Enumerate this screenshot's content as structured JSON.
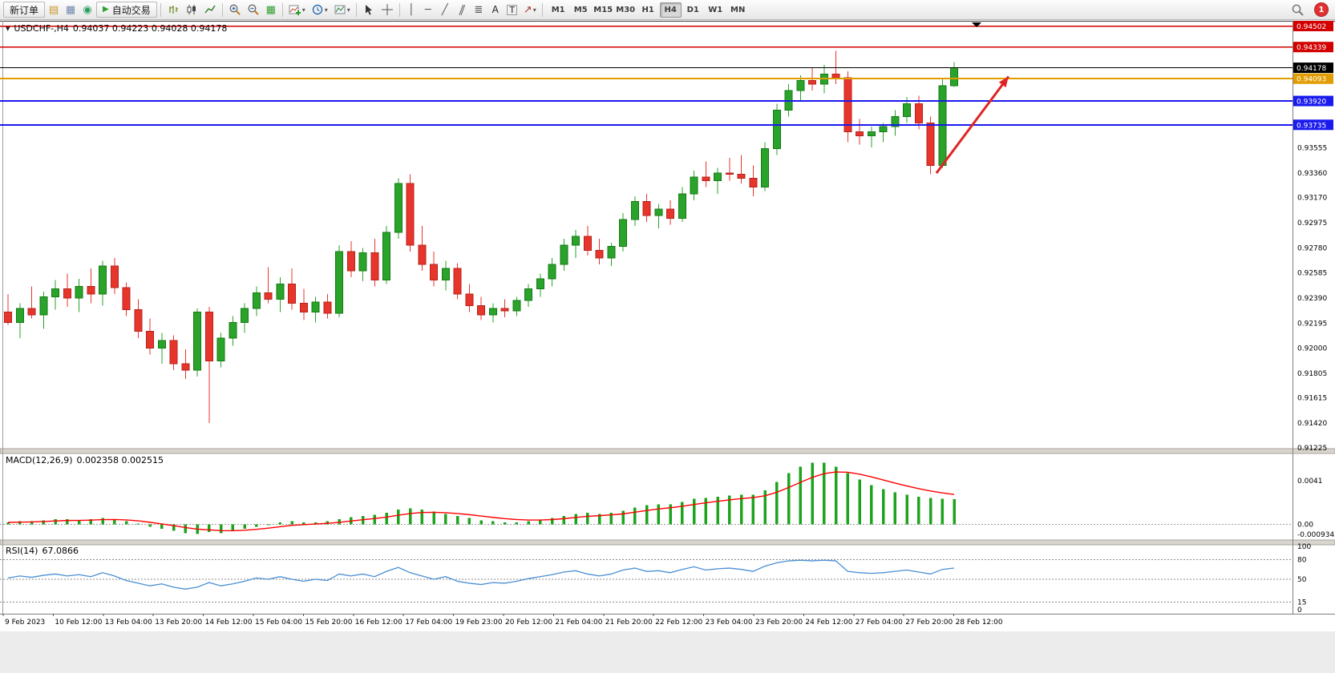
{
  "toolbar": {
    "new_order_label": "新订单",
    "autotrading_label": "自动交易",
    "timeframes": [
      "M1",
      "M5",
      "M15",
      "M30",
      "H1",
      "H4",
      "D1",
      "W1",
      "MN"
    ],
    "active_timeframe": "H4",
    "notification_count": "1",
    "glyphs": {
      "new_chart": "▤",
      "profiles": "▦",
      "terminal": "◉",
      "play": "▶",
      "tile": "▦",
      "vline": "│",
      "hline": "─",
      "trend": "╱",
      "channel": "∥",
      "fibo": "≣",
      "text": "A",
      "label": "T",
      "arrows": "↗",
      "dropdown": "▾"
    }
  },
  "chart": {
    "symbol_period": "USDCHF-,H4",
    "ohlc_text": "0.94037 0.94223 0.94028 0.94178",
    "dropdown_glyph": "▼",
    "macd_label": "MACD(12,26,9)",
    "macd_values": "0.002358 0.002515",
    "rsi_label": "RSI(14)",
    "rsi_value": "67.0866"
  },
  "chart_data": [
    {
      "type": "candlestick",
      "title": "USDCHF-,H4",
      "symbol": "USDCHF-",
      "timeframe": "H4",
      "current_ohlc": {
        "open": 0.94037,
        "high": 0.94223,
        "low": 0.94028,
        "close": 0.94178
      },
      "ylim": [
        0.9122,
        0.9453
      ],
      "up_color": "#2aa32a",
      "up_stroke": "#157a15",
      "down_color": "#e8352c",
      "down_stroke": "#b3231c",
      "y_ticks": [
        0.93555,
        0.9336,
        0.9317,
        0.92975,
        0.9278,
        0.92585,
        0.9239,
        0.92195,
        0.92,
        0.91805,
        0.91615,
        0.9142,
        0.91225
      ],
      "hlines": [
        {
          "price": 0.94502,
          "color": "#d20000",
          "width": 1.5,
          "label": "0.94502"
        },
        {
          "price": 0.94339,
          "color": "#d20000",
          "width": 1.5,
          "label": "0.94339"
        },
        {
          "price": 0.94178,
          "color": "#000000",
          "width": 1,
          "label": "0.94178"
        },
        {
          "price": 0.94093,
          "color": "#e09c00",
          "width": 2,
          "label": "0.94093"
        },
        {
          "price": 0.9392,
          "color": "#1a1aee",
          "width": 2,
          "label": "0.93920"
        },
        {
          "price": 0.93735,
          "color": "#1a1aee",
          "width": 2,
          "label": "0.93735"
        }
      ],
      "annotation_arrow": {
        "from_index": 78.5,
        "from_price": 0.9336,
        "to_index": 84.6,
        "to_price": 0.9411,
        "color": "#e02424"
      },
      "x_labels": [
        "9 Feb 2023",
        "10 Feb 12:00",
        "13 Feb 04:00",
        "13 Feb 20:00",
        "14 Feb 12:00",
        "15 Feb 04:00",
        "15 Feb 20:00",
        "16 Feb 12:00",
        "17 Feb 04:00",
        "19 Feb 23:00",
        "20 Feb 12:00",
        "21 Feb 04:00",
        "21 Feb 20:00",
        "22 Feb 12:00",
        "23 Feb 04:00",
        "23 Feb 20:00",
        "24 Feb 12:00",
        "27 Feb 04:00",
        "27 Feb 20:00",
        "28 Feb 12:00"
      ],
      "candles": [
        [
          0.9228,
          0.9242,
          0.9218,
          0.922
        ],
        [
          0.922,
          0.9235,
          0.9208,
          0.9231
        ],
        [
          0.9231,
          0.9248,
          0.9223,
          0.9226
        ],
        [
          0.9226,
          0.9244,
          0.9215,
          0.924
        ],
        [
          0.924,
          0.9253,
          0.923,
          0.9246
        ],
        [
          0.9246,
          0.9258,
          0.9232,
          0.9239
        ],
        [
          0.9239,
          0.9254,
          0.9228,
          0.9248
        ],
        [
          0.9248,
          0.9262,
          0.9235,
          0.9242
        ],
        [
          0.9242,
          0.9268,
          0.9233,
          0.9264
        ],
        [
          0.9264,
          0.927,
          0.9242,
          0.9247
        ],
        [
          0.9247,
          0.9251,
          0.9225,
          0.923
        ],
        [
          0.923,
          0.9238,
          0.9208,
          0.9213
        ],
        [
          0.9213,
          0.9223,
          0.9195,
          0.92
        ],
        [
          0.92,
          0.9212,
          0.9188,
          0.9206
        ],
        [
          0.9206,
          0.921,
          0.9183,
          0.9188
        ],
        [
          0.9188,
          0.9199,
          0.9176,
          0.9183
        ],
        [
          0.9183,
          0.9231,
          0.9178,
          0.9228
        ],
        [
          0.9228,
          0.9232,
          0.9142,
          0.919
        ],
        [
          0.919,
          0.9212,
          0.9185,
          0.9208
        ],
        [
          0.9208,
          0.9225,
          0.9202,
          0.922
        ],
        [
          0.922,
          0.9235,
          0.9212,
          0.9231
        ],
        [
          0.9231,
          0.9248,
          0.9225,
          0.9243
        ],
        [
          0.9243,
          0.9263,
          0.9235,
          0.9238
        ],
        [
          0.9238,
          0.9255,
          0.9228,
          0.925
        ],
        [
          0.925,
          0.9262,
          0.923,
          0.9235
        ],
        [
          0.9235,
          0.9246,
          0.9222,
          0.9228
        ],
        [
          0.9228,
          0.924,
          0.922,
          0.9236
        ],
        [
          0.9236,
          0.9242,
          0.9223,
          0.9227
        ],
        [
          0.9227,
          0.928,
          0.9224,
          0.9275
        ],
        [
          0.9275,
          0.9283,
          0.9255,
          0.926
        ],
        [
          0.926,
          0.9278,
          0.9252,
          0.9274
        ],
        [
          0.9274,
          0.9285,
          0.9248,
          0.9253
        ],
        [
          0.9253,
          0.9295,
          0.925,
          0.929
        ],
        [
          0.929,
          0.9332,
          0.9285,
          0.9328
        ],
        [
          0.9328,
          0.9335,
          0.9275,
          0.928
        ],
        [
          0.928,
          0.9295,
          0.926,
          0.9265
        ],
        [
          0.9265,
          0.9275,
          0.9248,
          0.9253
        ],
        [
          0.9253,
          0.9268,
          0.9245,
          0.9262
        ],
        [
          0.9262,
          0.9266,
          0.9238,
          0.9242
        ],
        [
          0.9242,
          0.925,
          0.9228,
          0.9233
        ],
        [
          0.9233,
          0.924,
          0.9222,
          0.9226
        ],
        [
          0.9226,
          0.9235,
          0.922,
          0.9231
        ],
        [
          0.9231,
          0.9238,
          0.9224,
          0.9229
        ],
        [
          0.9229,
          0.924,
          0.9225,
          0.9237
        ],
        [
          0.9237,
          0.925,
          0.9232,
          0.9246
        ],
        [
          0.9246,
          0.9258,
          0.924,
          0.9254
        ],
        [
          0.9254,
          0.927,
          0.9248,
          0.9265
        ],
        [
          0.9265,
          0.9285,
          0.926,
          0.928
        ],
        [
          0.928,
          0.9292,
          0.927,
          0.9287
        ],
        [
          0.9287,
          0.9295,
          0.9272,
          0.9276
        ],
        [
          0.9276,
          0.9285,
          0.9265,
          0.927
        ],
        [
          0.927,
          0.9282,
          0.9264,
          0.9279
        ],
        [
          0.9279,
          0.9305,
          0.9275,
          0.93
        ],
        [
          0.93,
          0.9318,
          0.9295,
          0.9314
        ],
        [
          0.9314,
          0.932,
          0.9298,
          0.9303
        ],
        [
          0.9303,
          0.9312,
          0.9293,
          0.9308
        ],
        [
          0.9308,
          0.9315,
          0.9296,
          0.9301
        ],
        [
          0.9301,
          0.9325,
          0.9298,
          0.932
        ],
        [
          0.932,
          0.9338,
          0.9315,
          0.9333
        ],
        [
          0.9333,
          0.9345,
          0.9325,
          0.933
        ],
        [
          0.933,
          0.934,
          0.932,
          0.9336
        ],
        [
          0.9336,
          0.9348,
          0.933,
          0.9335
        ],
        [
          0.9335,
          0.935,
          0.9328,
          0.9332
        ],
        [
          0.9332,
          0.9342,
          0.9318,
          0.9325
        ],
        [
          0.9325,
          0.936,
          0.9322,
          0.9355
        ],
        [
          0.9355,
          0.939,
          0.935,
          0.9385
        ],
        [
          0.9385,
          0.9405,
          0.938,
          0.94
        ],
        [
          0.94,
          0.9412,
          0.9392,
          0.9408
        ],
        [
          0.9408,
          0.9418,
          0.94,
          0.9405
        ],
        [
          0.9405,
          0.942,
          0.9398,
          0.9413
        ],
        [
          0.9413,
          0.9431,
          0.9405,
          0.941
        ],
        [
          0.941,
          0.9415,
          0.936,
          0.9368
        ],
        [
          0.9368,
          0.9378,
          0.9358,
          0.9365
        ],
        [
          0.9365,
          0.9372,
          0.9356,
          0.9368
        ],
        [
          0.9368,
          0.9375,
          0.936,
          0.9372
        ],
        [
          0.9372,
          0.9385,
          0.9365,
          0.938
        ],
        [
          0.938,
          0.9395,
          0.9375,
          0.939
        ],
        [
          0.939,
          0.9396,
          0.937,
          0.9375
        ],
        [
          0.9375,
          0.938,
          0.9335,
          0.9342
        ],
        [
          0.9342,
          0.941,
          0.934,
          0.9404
        ],
        [
          0.94037,
          0.94223,
          0.94028,
          0.94178
        ]
      ]
    },
    {
      "type": "bar",
      "name": "MACD",
      "params": "(12,26,9)",
      "values_text": "0.002358 0.002515",
      "ylim": [
        -0.0013,
        0.0065
      ],
      "bar_color": "#1ea31e",
      "signal_color": "#ff0000",
      "y_ticks": [
        {
          "v": 0.0041,
          "label": "0.0041"
        },
        {
          "v": 0,
          "label": "0.00"
        },
        {
          "v": -0.000934,
          "label": "-0.000934"
        }
      ],
      "values": [
        0.0002,
        0.0003,
        0.0003,
        0.0004,
        0.0005,
        0.0005,
        0.0004,
        0.0005,
        0.0006,
        0.0005,
        0.0003,
        0.0001,
        -0.0002,
        -0.0004,
        -0.0006,
        -0.0008,
        -0.0009,
        -0.0007,
        -0.0008,
        -0.0006,
        -0.0004,
        -0.0002,
        0,
        0.0002,
        0.0003,
        0.0002,
        0.0002,
        0.0003,
        0.0005,
        0.0007,
        0.0008,
        0.0009,
        0.0011,
        0.0014,
        0.0015,
        0.0014,
        0.0012,
        0.001,
        0.0008,
        0.0006,
        0.0004,
        0.0003,
        0.0002,
        0.0002,
        0.0003,
        0.0004,
        0.0006,
        0.0008,
        0.001,
        0.0011,
        0.001,
        0.0011,
        0.0013,
        0.0016,
        0.0018,
        0.0019,
        0.0019,
        0.0021,
        0.0024,
        0.0025,
        0.0026,
        0.0027,
        0.0028,
        0.0028,
        0.0032,
        0.004,
        0.0048,
        0.0054,
        0.0058,
        0.0058,
        0.0054,
        0.0048,
        0.0042,
        0.0037,
        0.0033,
        0.003,
        0.0028,
        0.0026,
        0.0025,
        0.0024,
        0.002358
      ]
    },
    {
      "type": "line",
      "name": "RSI",
      "params": "(14)",
      "value_text": "67.0866",
      "ylim": [
        0,
        100
      ],
      "line_color": "#4a8fd4",
      "levels": [
        80,
        50,
        15
      ],
      "y_ticks": [
        {
          "v": 100,
          "label": "100"
        },
        {
          "v": 80,
          "label": "80"
        },
        {
          "v": 50,
          "label": "50"
        },
        {
          "v": 15,
          "label": "15"
        },
        {
          "v": 0,
          "label": "0"
        }
      ],
      "values": [
        52,
        55,
        53,
        56,
        58,
        55,
        57,
        54,
        60,
        55,
        48,
        44,
        40,
        43,
        38,
        35,
        38,
        45,
        40,
        43,
        47,
        52,
        50,
        54,
        50,
        47,
        50,
        48,
        58,
        55,
        58,
        54,
        62,
        68,
        60,
        55,
        50,
        54,
        47,
        44,
        42,
        45,
        44,
        47,
        51,
        54,
        57,
        61,
        63,
        58,
        55,
        58,
        64,
        67,
        62,
        63,
        60,
        65,
        69,
        64,
        66,
        67,
        65,
        62,
        70,
        75,
        78,
        79,
        78,
        79,
        78,
        62,
        60,
        59,
        60,
        62,
        64,
        61,
        58,
        65,
        67.0866
      ]
    }
  ]
}
